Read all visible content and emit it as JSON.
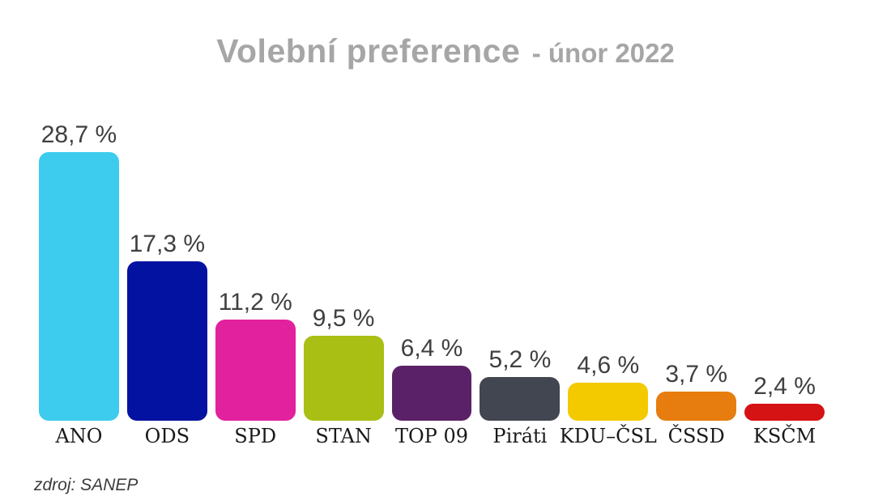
{
  "title": {
    "main": "Volební preference",
    "suffix": "- únor 2022"
  },
  "source": "zdroj: SANEP",
  "chart_data": {
    "type": "bar",
    "title": "Volební preference - únor 2022",
    "categories": [
      "ANO",
      "ODS",
      "SPD",
      "STAN",
      "TOP 09",
      "Piráti",
      "KDU–ČSL",
      "ČSSD",
      "KSČM"
    ],
    "values": [
      28.7,
      17.3,
      11.2,
      9.5,
      6.4,
      5.2,
      4.6,
      3.7,
      2.4
    ],
    "value_labels": [
      "28,7 %",
      "17,3 %",
      "11,2 %",
      "9,5 %",
      "6,4 %",
      "5,2 %",
      "4,6 %",
      "3,7 %",
      "2,4 %"
    ],
    "colors": [
      "#3dccee",
      "#0312a0",
      "#e2219e",
      "#aabf14",
      "#5b2168",
      "#424650",
      "#f3c900",
      "#e67d0e",
      "#d51214"
    ],
    "xlabel": "",
    "ylabel": "",
    "ylim": [
      0,
      30
    ],
    "grid": false,
    "legend": "none",
    "axes_visible": false,
    "bar_label_position": "above",
    "source_note": "zdroj: SANEP",
    "title_color": "#a6a6a6",
    "value_label_color": "#404040",
    "category_label_color": "#1a1a1a"
  }
}
